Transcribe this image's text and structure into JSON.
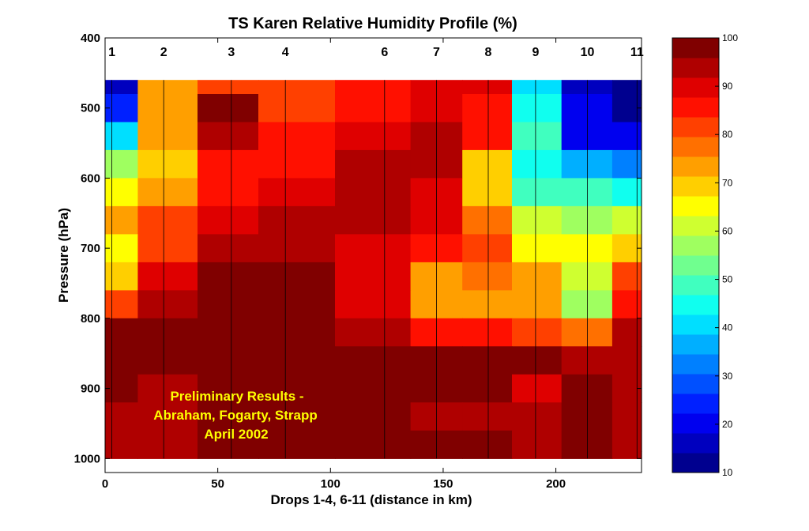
{
  "chart_data": {
    "type": "heatmap",
    "title": "TS Karen Relative Humidity Profile (%)",
    "xlabel": "Drops 1-4, 6-11 (distance in km)",
    "ylabel": "Pressure (hPa)",
    "xlim": [
      0,
      238
    ],
    "ylim": [
      400,
      1020
    ],
    "y_reversed": true,
    "x_ticks": [
      0,
      50,
      100,
      150,
      200
    ],
    "y_ticks": [
      400,
      500,
      600,
      700,
      800,
      900,
      1000
    ],
    "drops": [
      {
        "label": "1",
        "x": 3
      },
      {
        "label": "2",
        "x": 26
      },
      {
        "label": "3",
        "x": 56
      },
      {
        "label": "4",
        "x": 80
      },
      {
        "label": "6",
        "x": 124
      },
      {
        "label": "7",
        "x": 147
      },
      {
        "label": "8",
        "x": 170
      },
      {
        "label": "9",
        "x": 191
      },
      {
        "label": "10",
        "x": 214
      },
      {
        "label": "11",
        "x": 236
      }
    ],
    "pressure_levels": [
      460,
      500,
      540,
      580,
      620,
      660,
      700,
      740,
      780,
      820,
      860,
      900,
      940,
      980,
      1000
    ],
    "rh_values": [
      [
        15,
        72,
        80,
        80,
        84,
        90,
        88,
        40,
        18,
        12
      ],
      [
        25,
        74,
        98,
        82,
        86,
        90,
        86,
        45,
        20,
        14
      ],
      [
        42,
        72,
        94,
        84,
        90,
        93,
        84,
        50,
        22,
        20
      ],
      [
        55,
        70,
        86,
        86,
        92,
        94,
        70,
        46,
        35,
        32
      ],
      [
        66,
        75,
        86,
        88,
        92,
        90,
        68,
        50,
        48,
        45
      ],
      [
        72,
        80,
        88,
        92,
        92,
        90,
        78,
        60,
        58,
        62
      ],
      [
        64,
        82,
        92,
        95,
        88,
        84,
        80,
        66,
        64,
        70
      ],
      [
        70,
        88,
        96,
        97,
        90,
        74,
        76,
        72,
        60,
        82
      ],
      [
        82,
        92,
        97,
        97,
        90,
        72,
        74,
        72,
        58,
        86
      ],
      [
        96,
        96,
        97,
        96,
        92,
        86,
        84,
        80,
        78,
        92
      ],
      [
        96,
        96,
        97,
        97,
        96,
        96,
        96,
        96,
        94,
        95
      ],
      [
        96,
        94,
        97,
        97,
        96,
        96,
        96,
        90,
        96,
        95
      ],
      [
        94,
        93,
        97,
        97,
        96,
        95,
        95,
        92,
        96,
        95
      ],
      [
        95,
        95,
        97,
        97,
        96,
        96,
        96,
        95,
        96,
        95
      ],
      [
        95,
        95,
        97,
        97,
        96,
        96,
        96,
        95,
        96,
        95
      ]
    ],
    "colorbar": {
      "min": 10,
      "max": 100,
      "ticks": [
        10,
        20,
        30,
        40,
        50,
        60,
        70,
        80,
        90,
        100
      ],
      "colors": [
        "#00008f",
        "#0000bf",
        "#0000ef",
        "#0020ff",
        "#0050ff",
        "#0080ff",
        "#00afff",
        "#00dfff",
        "#10ffef",
        "#40ffbf",
        "#70ff8f",
        "#9fff60",
        "#cfff30",
        "#ffff00",
        "#ffcf00",
        "#ff9f00",
        "#ff7000",
        "#ff4000",
        "#ff1000",
        "#df0000",
        "#af0000",
        "#800000"
      ]
    },
    "annotation": [
      "Preliminary Results -",
      "Abraham, Fogarty, Strapp",
      "April 2002"
    ]
  }
}
